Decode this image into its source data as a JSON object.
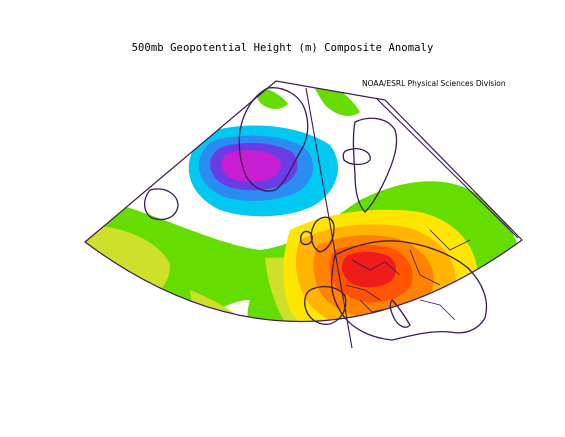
{
  "map": {
    "title": "500mb Geopotential Height (m) Composite Anomaly",
    "credit": "NOAA/ESRL Physical Sciences Division",
    "projection": "polar sector (North Atlantic / Europe)",
    "layers": [
      "geopotential-height-anomaly-fill",
      "coastlines",
      "country-borders",
      "meridians"
    ],
    "colors": {
      "lime": "#cfe02a",
      "green": "#66dd00",
      "white": "#ffffff",
      "cyan": "#00c8f0",
      "blue": "#2a8cf0",
      "violet": "#6a3ce6",
      "magenta": "#c81ed2",
      "yellow": "#ffe600",
      "orange_light": "#ffb400",
      "orange": "#ff8200",
      "orange_red": "#ff5500",
      "red": "#f01c1c",
      "coast": "#3c1a54"
    }
  }
}
